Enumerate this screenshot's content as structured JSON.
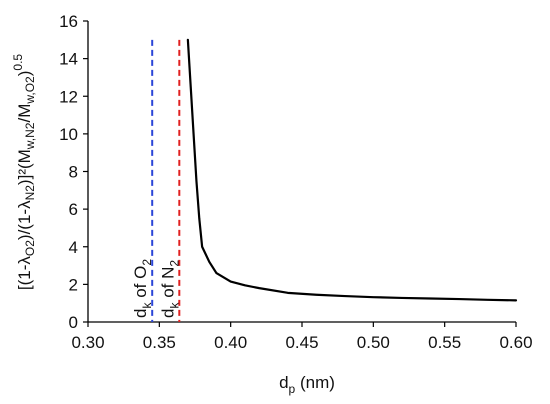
{
  "chart_data": {
    "type": "line",
    "x_label_main": "d",
    "x_label_sub": "p",
    "x_label_unit": " (nm)",
    "y_label": "[(1-λO2)/(1-λN2)]²(Mw,N2/Mw,O2)^0.5",
    "xlim": [
      0.3,
      0.6
    ],
    "ylim": [
      0,
      16
    ],
    "x_ticks": [
      "0.30",
      "0.35",
      "0.40",
      "0.45",
      "0.50",
      "0.55",
      "0.60"
    ],
    "y_ticks": [
      "0",
      "2",
      "4",
      "6",
      "8",
      "10",
      "12",
      "14",
      "16"
    ],
    "grid": false,
    "series": [
      {
        "color": "#000000",
        "x": [
          0.37,
          0.372,
          0.374,
          0.376,
          0.378,
          0.38,
          0.385,
          0.39,
          0.4,
          0.41,
          0.42,
          0.44,
          0.46,
          0.48,
          0.5,
          0.52,
          0.54,
          0.56,
          0.58,
          0.6
        ],
        "y": [
          15.0,
          12.5,
          10.0,
          7.5,
          5.5,
          4.0,
          3.2,
          2.6,
          2.15,
          1.95,
          1.8,
          1.55,
          1.45,
          1.38,
          1.32,
          1.28,
          1.25,
          1.22,
          1.18,
          1.15
        ]
      }
    ],
    "vlines": [
      {
        "x": 0.345,
        "color": "#2b45d8",
        "label_main": "d",
        "label_sub": "k",
        "label_rest": " of O",
        "label_sub2": "2"
      },
      {
        "x": 0.364,
        "color": "#e02020",
        "label_main": "d",
        "label_sub": "k",
        "label_rest": " of N",
        "label_sub2": "2"
      }
    ],
    "vline_ymax": 15.0
  }
}
